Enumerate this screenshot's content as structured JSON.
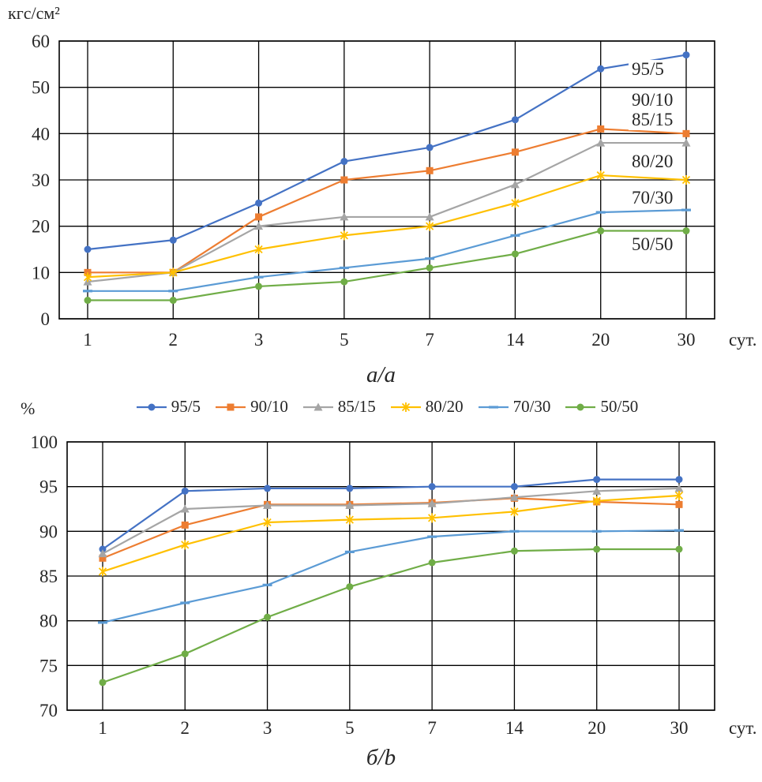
{
  "x_axis_unit": "сут.",
  "chart_data": [
    {
      "type": "line",
      "id": "a",
      "caption": "а/а",
      "ylabel": "кгс/см²",
      "xlabel": "сут.",
      "categories": [
        "1",
        "2",
        "3",
        "5",
        "7",
        "14",
        "20",
        "30"
      ],
      "ylim": [
        0,
        60
      ],
      "yticks": [
        0,
        10,
        20,
        30,
        40,
        50,
        60
      ],
      "grid": true,
      "legend_position": "right-inside-labels",
      "series": [
        {
          "name": "95/5",
          "color": "#4472C4",
          "marker": "circle",
          "values": [
            15,
            17,
            25,
            34,
            37,
            43,
            54,
            57
          ]
        },
        {
          "name": "90/10",
          "color": "#ED7D31",
          "marker": "square",
          "values": [
            10,
            10,
            22,
            30,
            32,
            36,
            41,
            40
          ]
        },
        {
          "name": "85/15",
          "color": "#A5A5A5",
          "marker": "triangle",
          "values": [
            8,
            10,
            20,
            22,
            22,
            29,
            38,
            38
          ]
        },
        {
          "name": "80/20",
          "color": "#FFC000",
          "marker": "x",
          "values": [
            9,
            10,
            15,
            18,
            20,
            25,
            31,
            30
          ]
        },
        {
          "name": "70/30",
          "color": "#5B9BD5",
          "marker": "dash",
          "values": [
            6,
            6,
            9,
            11,
            13,
            18,
            23,
            23.5
          ]
        },
        {
          "name": "50/50",
          "color": "#70AD47",
          "marker": "circle",
          "values": [
            4,
            4,
            7,
            8,
            11,
            14,
            19,
            19
          ]
        }
      ]
    },
    {
      "type": "line",
      "id": "b",
      "caption": "б/b",
      "ylabel": "%",
      "xlabel": "сут.",
      "categories": [
        "1",
        "2",
        "3",
        "5",
        "7",
        "14",
        "20",
        "30"
      ],
      "ylim": [
        70,
        100
      ],
      "yticks": [
        70,
        75,
        80,
        85,
        90,
        95,
        100
      ],
      "grid": true,
      "legend_position": "top",
      "series": [
        {
          "name": "95/5",
          "color": "#4472C4",
          "marker": "circle",
          "values": [
            88,
            94.5,
            94.8,
            94.8,
            95,
            95,
            95.8,
            95.8
          ]
        },
        {
          "name": "90/10",
          "color": "#ED7D31",
          "marker": "square",
          "values": [
            87,
            90.7,
            93,
            93,
            93.2,
            93.7,
            93.3,
            93
          ]
        },
        {
          "name": "85/15",
          "color": "#A5A5A5",
          "marker": "triangle",
          "values": [
            87.5,
            92.5,
            92.9,
            92.9,
            93.1,
            93.8,
            94.5,
            94.8
          ]
        },
        {
          "name": "80/20",
          "color": "#FFC000",
          "marker": "x",
          "values": [
            85.5,
            88.5,
            91,
            91.3,
            91.5,
            92.2,
            93.4,
            94
          ]
        },
        {
          "name": "70/30",
          "color": "#5B9BD5",
          "marker": "dash",
          "values": [
            79.8,
            82,
            84,
            87.7,
            89.4,
            90,
            90,
            90.1
          ]
        },
        {
          "name": "50/50",
          "color": "#70AD47",
          "marker": "circle",
          "values": [
            73.1,
            76.3,
            80.4,
            83.8,
            86.5,
            87.8,
            88,
            88
          ]
        }
      ]
    }
  ]
}
